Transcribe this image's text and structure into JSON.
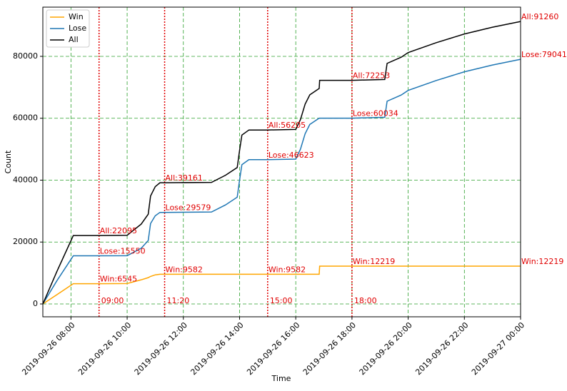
{
  "chart_data": {
    "type": "line",
    "xlabel": "Time",
    "ylabel": "Count",
    "x": [
      "2019-09-26 07:00",
      "2019-09-26 07:30",
      "2019-09-26 08:05",
      "2019-09-26 09:00",
      "2019-09-26 10:00",
      "2019-09-26 10:30",
      "2019-09-26 10:45",
      "2019-09-26 10:50",
      "2019-09-26 11:00",
      "2019-09-26 11:10",
      "2019-09-26 11:20",
      "2019-09-26 13:00",
      "2019-09-26 13:30",
      "2019-09-26 13:55",
      "2019-09-26 14:00",
      "2019-09-26 14:05",
      "2019-09-26 14:20",
      "2019-09-26 15:00",
      "2019-09-26 16:00",
      "2019-09-26 16:10",
      "2019-09-26 16:20",
      "2019-09-26 16:30",
      "2019-09-26 16:50",
      "2019-09-26 16:51",
      "2019-09-26 18:00",
      "2019-09-26 19:10",
      "2019-09-26 19:15",
      "2019-09-26 19:45",
      "2019-09-26 20:00",
      "2019-09-26 21:00",
      "2019-09-26 22:00",
      "2019-09-26 23:00",
      "2019-09-27 00:00"
    ],
    "series": [
      {
        "name": "Win",
        "color": "#ffa500",
        "values": [
          0,
          3000,
          6545,
          6545,
          6600,
          7800,
          8500,
          8900,
          9400,
          9582,
          9582,
          9582,
          9582,
          9582,
          9582,
          9582,
          9582,
          9582,
          9582,
          9582,
          9582,
          9582,
          9582,
          12219,
          12219,
          12219,
          12219,
          12219,
          12219,
          12219,
          12219,
          12219,
          12219
        ]
      },
      {
        "name": "Lose",
        "color": "#1f77b4",
        "values": [
          0,
          7500,
          15550,
          15550,
          15600,
          18000,
          20500,
          26000,
          28500,
          29579,
          29579,
          29700,
          32000,
          34500,
          40000,
          45000,
          46623,
          46623,
          46800,
          50000,
          55000,
          58000,
          60034,
          60034,
          60034,
          60300,
          65500,
          67500,
          69000,
          72200,
          75000,
          77200,
          79041
        ]
      },
      {
        "name": "All",
        "color": "#000000",
        "values": [
          0,
          10500,
          22095,
          22095,
          22200,
          25800,
          29000,
          34900,
          37900,
          39161,
          39161,
          39280,
          41580,
          44080,
          49580,
          54580,
          56205,
          56205,
          56380,
          59580,
          64580,
          67580,
          69616,
          72253,
          72253,
          72519,
          77719,
          79719,
          81219,
          84419,
          87219,
          89419,
          91260
        ]
      }
    ],
    "xlim": [
      "2019-09-26 07:00",
      "2019-09-27 00:00"
    ],
    "xticks": [
      "2019-09-26 08:00",
      "2019-09-26 10:00",
      "2019-09-26 12:00",
      "2019-09-26 14:00",
      "2019-09-26 16:00",
      "2019-09-26 18:00",
      "2019-09-26 20:00",
      "2019-09-26 22:00",
      "2019-09-27 00:00"
    ],
    "ylim": [
      -4150,
      95900
    ],
    "yticks": [
      0,
      20000,
      40000,
      60000,
      80000
    ],
    "grid": true,
    "grid_color": "#2ca02c",
    "legend": "upper left",
    "annotation_color": "#e00000",
    "vlines": [
      {
        "x": "2019-09-26 09:00",
        "label": "09:00"
      },
      {
        "x": "2019-09-26 11:20",
        "label": "11:20"
      },
      {
        "x": "2019-09-26 15:00",
        "label": "15:00"
      },
      {
        "x": "2019-09-26 18:00",
        "label": "18:00"
      }
    ],
    "annotations": [
      {
        "x": "2019-09-26 09:00",
        "y": 6545,
        "label": "Win:6545"
      },
      {
        "x": "2019-09-26 09:00",
        "y": 15550,
        "label": "Lose:15550"
      },
      {
        "x": "2019-09-26 09:00",
        "y": 22095,
        "label": "All:22095"
      },
      {
        "x": "2019-09-26 11:20",
        "y": 9582,
        "label": "Win:9582"
      },
      {
        "x": "2019-09-26 11:20",
        "y": 29579,
        "label": "Lose:29579"
      },
      {
        "x": "2019-09-26 11:20",
        "y": 39161,
        "label": "All:39161"
      },
      {
        "x": "2019-09-26 15:00",
        "y": 9582,
        "label": "Win:9582"
      },
      {
        "x": "2019-09-26 15:00",
        "y": 46623,
        "label": "Lose:46623"
      },
      {
        "x": "2019-09-26 15:00",
        "y": 56205,
        "label": "All:56205"
      },
      {
        "x": "2019-09-26 18:00",
        "y": 12219,
        "label": "Win:12219"
      },
      {
        "x": "2019-09-26 18:00",
        "y": 60034,
        "label": "Lose:60034"
      },
      {
        "x": "2019-09-26 18:00",
        "y": 72253,
        "label": "All:72253"
      },
      {
        "x": "2019-09-27 00:00",
        "y": 91260,
        "label": "All:91260"
      },
      {
        "x": "2019-09-27 00:00",
        "y": 79041,
        "label": "Lose:79041"
      },
      {
        "x": "2019-09-27 00:00",
        "y": 12219,
        "label": "Win:12219"
      }
    ]
  }
}
